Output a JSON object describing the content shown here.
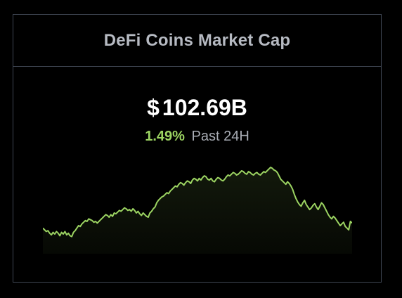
{
  "widget": {
    "title": "DeFi Coins Market Cap",
    "currency_symbol": "$",
    "value": "102.69B",
    "change_percent": "1.49%",
    "change_label": "Past 24H",
    "colors": {
      "positive": "#9cd462",
      "line": "#9cd462",
      "border": "#3f4653",
      "background": "#000000"
    }
  },
  "chart_data": {
    "type": "area",
    "title": "",
    "xlabel": "",
    "ylabel": "",
    "grid": false,
    "legend": "none",
    "ylim": [
      0,
      100
    ],
    "series": [
      {
        "values": [
          22,
          20,
          18,
          19,
          16,
          14,
          17,
          15,
          18,
          16,
          13,
          17,
          15,
          18,
          14,
          16,
          13,
          12,
          17,
          19,
          22,
          25,
          24,
          27,
          29,
          31,
          30,
          33,
          32,
          31,
          29,
          30,
          28,
          30,
          32,
          34,
          36,
          38,
          37,
          35,
          38,
          36,
          40,
          39,
          41,
          43,
          42,
          44,
          46,
          45,
          43,
          44,
          42,
          45,
          43,
          40,
          42,
          39,
          37,
          40,
          38,
          36,
          35,
          40,
          42,
          45,
          47,
          52,
          55,
          57,
          59,
          60,
          62,
          64,
          63,
          66,
          68,
          70,
          72,
          71,
          74,
          76,
          75,
          73,
          76,
          78,
          77,
          75,
          79,
          81,
          80,
          78,
          81,
          79,
          82,
          84,
          83,
          80,
          79,
          81,
          78,
          77,
          80,
          82,
          81,
          79,
          78,
          80,
          83,
          85,
          84,
          86,
          88,
          87,
          85,
          86,
          88,
          90,
          89,
          87,
          86,
          89,
          88,
          86,
          85,
          87,
          88,
          86,
          85,
          87,
          89,
          88,
          90,
          92,
          94,
          93,
          91,
          90,
          88,
          84,
          80,
          78,
          76,
          74,
          77,
          75,
          72,
          68,
          62,
          57,
          53,
          50,
          48,
          52,
          55,
          50,
          47,
          44,
          46,
          49,
          51,
          47,
          44,
          48,
          52,
          50,
          46,
          42,
          38,
          35,
          33,
          36,
          34,
          31,
          28,
          25,
          27,
          29,
          24,
          22,
          20,
          30,
          28
        ]
      }
    ]
  }
}
